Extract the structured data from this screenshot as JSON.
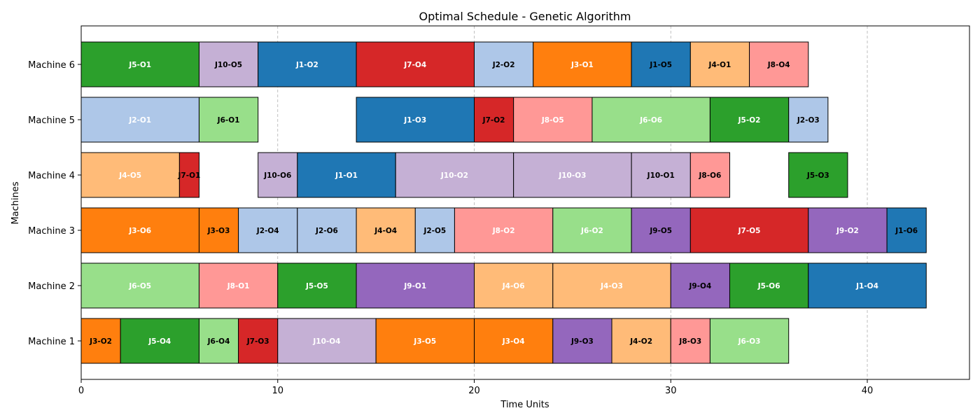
{
  "chart_data": {
    "type": "gantt",
    "title": "Optimal Schedule - Genetic Algorithm",
    "xlabel": "Time Units",
    "ylabel": "Machines",
    "xlim": [
      0,
      45.2
    ],
    "xticks": [
      0,
      10,
      20,
      30,
      40
    ],
    "grid": "x-dashed",
    "machines": [
      "Machine 1",
      "Machine 2",
      "Machine 3",
      "Machine 4",
      "Machine 5",
      "Machine 6"
    ],
    "job_colors": {
      "J1": "#1f77b4",
      "J2": "#aec7e8",
      "J3": "#ff7f0e",
      "J4": "#ffbb78",
      "J5": "#2ca02c",
      "J6": "#98df8a",
      "J7": "#d62728",
      "J8": "#ff9896",
      "J9": "#9467bd",
      "J10": "#c5b0d5"
    },
    "light_text_jobs": [
      "J1",
      "J2",
      "J3",
      "J4",
      "J5",
      "J6",
      "J8",
      "J10"
    ],
    "tasks": [
      {
        "machine": 0,
        "job": "J3",
        "label": "J3-O2",
        "start": 0,
        "end": 2,
        "dark_text": true
      },
      {
        "machine": 0,
        "job": "J5",
        "label": "J5-O4",
        "start": 2,
        "end": 6
      },
      {
        "machine": 0,
        "job": "J6",
        "label": "J6-O4",
        "start": 6,
        "end": 8,
        "dark_text": true
      },
      {
        "machine": 0,
        "job": "J7",
        "label": "J7-O3",
        "start": 8,
        "end": 10,
        "dark_text": true
      },
      {
        "machine": 0,
        "job": "J10",
        "label": "J10-O4",
        "start": 10,
        "end": 15
      },
      {
        "machine": 0,
        "job": "J3",
        "label": "J3-O5",
        "start": 15,
        "end": 20
      },
      {
        "machine": 0,
        "job": "J3",
        "label": "J3-O4",
        "start": 20,
        "end": 24
      },
      {
        "machine": 0,
        "job": "J9",
        "label": "J9-O3",
        "start": 24,
        "end": 27,
        "dark_text": true
      },
      {
        "machine": 0,
        "job": "J4",
        "label": "J4-O2",
        "start": 27,
        "end": 30,
        "dark_text": true
      },
      {
        "machine": 0,
        "job": "J8",
        "label": "J8-O3",
        "start": 30,
        "end": 32,
        "dark_text": true
      },
      {
        "machine": 0,
        "job": "J6",
        "label": "J6-O3",
        "start": 32,
        "end": 36
      },
      {
        "machine": 1,
        "job": "J6",
        "label": "J6-O5",
        "start": 0,
        "end": 6
      },
      {
        "machine": 1,
        "job": "J8",
        "label": "J8-O1",
        "start": 6,
        "end": 10
      },
      {
        "machine": 1,
        "job": "J5",
        "label": "J5-O5",
        "start": 10,
        "end": 14
      },
      {
        "machine": 1,
        "job": "J9",
        "label": "J9-O1",
        "start": 14,
        "end": 20
      },
      {
        "machine": 1,
        "job": "J4",
        "label": "J4-O6",
        "start": 20,
        "end": 24
      },
      {
        "machine": 1,
        "job": "J4",
        "label": "J4-O3",
        "start": 24,
        "end": 30
      },
      {
        "machine": 1,
        "job": "J9",
        "label": "J9-O4",
        "start": 30,
        "end": 33,
        "dark_text": true
      },
      {
        "machine": 1,
        "job": "J5",
        "label": "J5-O6",
        "start": 33,
        "end": 37
      },
      {
        "machine": 1,
        "job": "J1",
        "label": "J1-O4",
        "start": 37,
        "end": 43
      },
      {
        "machine": 2,
        "job": "J3",
        "label": "J3-O6",
        "start": 0,
        "end": 6
      },
      {
        "machine": 2,
        "job": "J3",
        "label": "J3-O3",
        "start": 6,
        "end": 8,
        "dark_text": true
      },
      {
        "machine": 2,
        "job": "J2",
        "label": "J2-O4",
        "start": 8,
        "end": 11,
        "dark_text": true
      },
      {
        "machine": 2,
        "job": "J2",
        "label": "J2-O6",
        "start": 11,
        "end": 14,
        "dark_text": true
      },
      {
        "machine": 2,
        "job": "J4",
        "label": "J4-O4",
        "start": 14,
        "end": 17,
        "dark_text": true
      },
      {
        "machine": 2,
        "job": "J2",
        "label": "J2-O5",
        "start": 17,
        "end": 19,
        "dark_text": true
      },
      {
        "machine": 2,
        "job": "J8",
        "label": "J8-O2",
        "start": 19,
        "end": 24
      },
      {
        "machine": 2,
        "job": "J6",
        "label": "J6-O2",
        "start": 24,
        "end": 28
      },
      {
        "machine": 2,
        "job": "J9",
        "label": "J9-O5",
        "start": 28,
        "end": 31,
        "dark_text": true
      },
      {
        "machine": 2,
        "job": "J7",
        "label": "J7-O5",
        "start": 31,
        "end": 37
      },
      {
        "machine": 2,
        "job": "J9",
        "label": "J9-O2",
        "start": 37,
        "end": 41
      },
      {
        "machine": 2,
        "job": "J1",
        "label": "J1-O6",
        "start": 41,
        "end": 43,
        "dark_text": true
      },
      {
        "machine": 3,
        "job": "J4",
        "label": "J4-O5",
        "start": 0,
        "end": 5
      },
      {
        "machine": 3,
        "job": "J7",
        "label": "J7-O1",
        "start": 5,
        "end": 6,
        "dark_text": true
      },
      {
        "machine": 3,
        "job": "J10",
        "label": "J10-O6",
        "start": 9,
        "end": 11,
        "dark_text": true
      },
      {
        "machine": 3,
        "job": "J1",
        "label": "J1-O1",
        "start": 11,
        "end": 16
      },
      {
        "machine": 3,
        "job": "J10",
        "label": "J10-O2",
        "start": 16,
        "end": 22
      },
      {
        "machine": 3,
        "job": "J10",
        "label": "J10-O3",
        "start": 22,
        "end": 28
      },
      {
        "machine": 3,
        "job": "J10",
        "label": "J10-O1",
        "start": 28,
        "end": 31,
        "dark_text": true
      },
      {
        "machine": 3,
        "job": "J8",
        "label": "J8-O6",
        "start": 31,
        "end": 33,
        "dark_text": true
      },
      {
        "machine": 3,
        "job": "J5",
        "label": "J5-O3",
        "start": 36,
        "end": 39,
        "dark_text": true
      },
      {
        "machine": 4,
        "job": "J2",
        "label": "J2-O1",
        "start": 0,
        "end": 6
      },
      {
        "machine": 4,
        "job": "J6",
        "label": "J6-O1",
        "start": 6,
        "end": 9,
        "dark_text": true
      },
      {
        "machine": 4,
        "job": "J1",
        "label": "J1-O3",
        "start": 14,
        "end": 20
      },
      {
        "machine": 4,
        "job": "J7",
        "label": "J7-O2",
        "start": 20,
        "end": 22,
        "dark_text": true
      },
      {
        "machine": 4,
        "job": "J8",
        "label": "J8-O5",
        "start": 22,
        "end": 26
      },
      {
        "machine": 4,
        "job": "J6",
        "label": "J6-O6",
        "start": 26,
        "end": 32
      },
      {
        "machine": 4,
        "job": "J5",
        "label": "J5-O2",
        "start": 32,
        "end": 36
      },
      {
        "machine": 4,
        "job": "J2",
        "label": "J2-O3",
        "start": 36,
        "end": 38,
        "dark_text": true
      },
      {
        "machine": 5,
        "job": "J5",
        "label": "J5-O1",
        "start": 0,
        "end": 6
      },
      {
        "machine": 5,
        "job": "J10",
        "label": "J10-O5",
        "start": 6,
        "end": 9,
        "dark_text": true
      },
      {
        "machine": 5,
        "job": "J1",
        "label": "J1-O2",
        "start": 9,
        "end": 14
      },
      {
        "machine": 5,
        "job": "J7",
        "label": "J7-O4",
        "start": 14,
        "end": 20
      },
      {
        "machine": 5,
        "job": "J2",
        "label": "J2-O2",
        "start": 20,
        "end": 23,
        "dark_text": true
      },
      {
        "machine": 5,
        "job": "J3",
        "label": "J3-O1",
        "start": 23,
        "end": 28
      },
      {
        "machine": 5,
        "job": "J1",
        "label": "J1-O5",
        "start": 28,
        "end": 31,
        "dark_text": true
      },
      {
        "machine": 5,
        "job": "J4",
        "label": "J4-O1",
        "start": 31,
        "end": 34,
        "dark_text": true
      },
      {
        "machine": 5,
        "job": "J8",
        "label": "J8-O4",
        "start": 34,
        "end": 37,
        "dark_text": true
      }
    ]
  }
}
